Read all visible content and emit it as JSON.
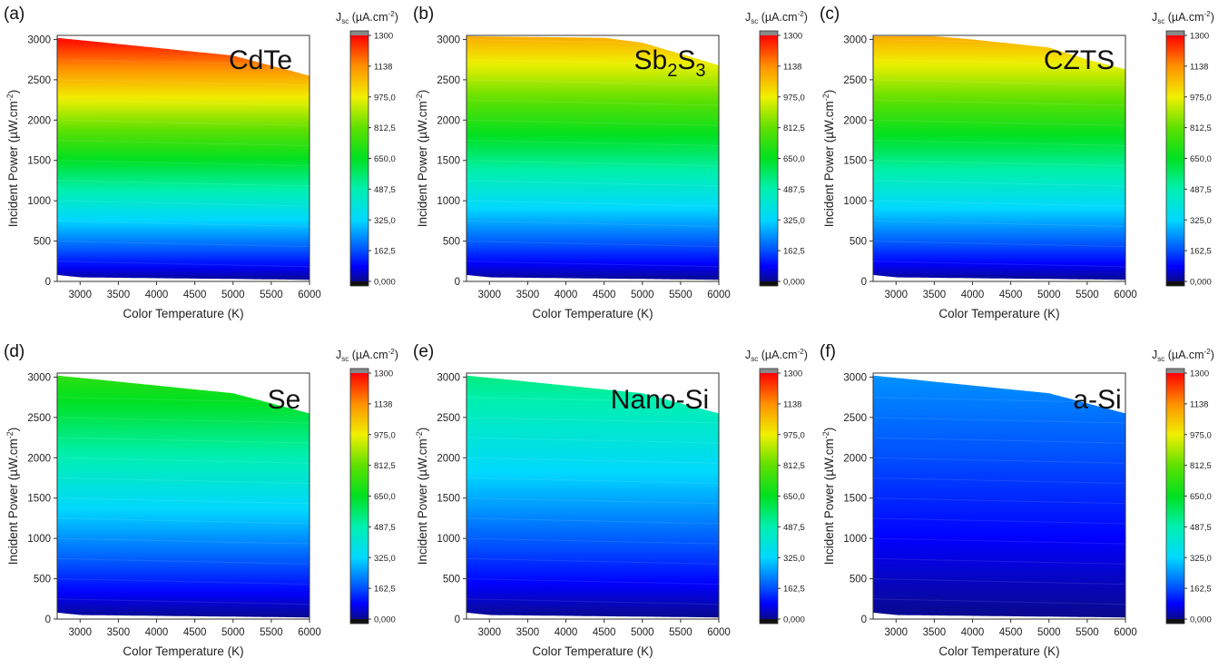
{
  "figure": {
    "colorbar": {
      "title_main": "J",
      "title_sub": "sc",
      "title_unit": " (µA.cm",
      "title_sup": "-2",
      "title_close": ")",
      "tick_labels": [
        "0,000",
        "162,5",
        "325,0",
        "487,5",
        "650,0",
        "812,5",
        "975,0",
        "1138",
        "1300"
      ],
      "range": [
        0,
        1300
      ],
      "stops": [
        {
          "value": 0,
          "color": "#0a0a8a"
        },
        {
          "value": 80,
          "color": "#0000ff"
        },
        {
          "value": 162.5,
          "color": "#0050ff"
        },
        {
          "value": 325,
          "color": "#00d8ff"
        },
        {
          "value": 487.5,
          "color": "#00f0b0"
        },
        {
          "value": 650,
          "color": "#00e020"
        },
        {
          "value": 812.5,
          "color": "#60e000"
        },
        {
          "value": 975,
          "color": "#f0f000"
        },
        {
          "value": 1138,
          "color": "#ff9000"
        },
        {
          "value": 1300,
          "color": "#ff0000"
        }
      ],
      "overflow_color": "#888888",
      "underflow_color": "#111111"
    }
  },
  "chart_data": [
    {
      "panel": "(a)",
      "material": "CdTe",
      "type": "heatmap",
      "xlabel": "Color Temperature (K)",
      "ylabel_main": "Incident Power (µW.cm",
      "ylabel_sup": "-2",
      "ylabel_close": ")",
      "xlim": [
        2700,
        6000
      ],
      "ylim": [
        0,
        3050
      ],
      "xticks": [
        3000,
        3500,
        4000,
        4500,
        5000,
        5500,
        6000
      ],
      "yticks": [
        0,
        500,
        1000,
        1500,
        2000,
        2500,
        3000
      ],
      "top_boundary": {
        "x": [
          2700,
          5000,
          6000
        ],
        "y": [
          3020,
          2800,
          2550
        ]
      },
      "bottom_boundary": {
        "x": [
          2700,
          3000,
          6000
        ],
        "y": [
          80,
          50,
          20
        ]
      },
      "jsc_per_power_uA_per_uW": 0.43,
      "jsc_max": 1300
    },
    {
      "panel": "(b)",
      "material_main": "Sb",
      "material_sub1": "2",
      "material_mid": "S",
      "material_sub2": "3",
      "type": "heatmap",
      "xlabel": "Color Temperature (K)",
      "ylabel_main": "Incident Power (µW.cm",
      "ylabel_sup": "-2",
      "ylabel_close": ")",
      "xlim": [
        2700,
        6000
      ],
      "ylim": [
        0,
        3050
      ],
      "xticks": [
        3000,
        3500,
        4000,
        4500,
        5000,
        5500,
        6000
      ],
      "yticks": [
        0,
        500,
        1000,
        1500,
        2000,
        2500,
        3000
      ],
      "top_boundary": {
        "x": [
          2700,
          4500,
          5000,
          5500,
          6000
        ],
        "y": [
          3040,
          3020,
          2960,
          2820,
          2680
        ]
      },
      "bottom_boundary": {
        "x": [
          2700,
          3000,
          6000
        ],
        "y": [
          80,
          50,
          20
        ]
      },
      "jsc_per_power_uA_per_uW": 0.36,
      "jsc_max": 1100
    },
    {
      "panel": "(c)",
      "material": "CZTS",
      "type": "heatmap",
      "xlabel": "Color Temperature (K)",
      "ylabel_main": "Incident Power (µW.cm",
      "ylabel_sup": "-2",
      "ylabel_close": ")",
      "xlim": [
        2700,
        6000
      ],
      "ylim": [
        0,
        3050
      ],
      "xticks": [
        3000,
        3500,
        4000,
        4500,
        5000,
        5500,
        6000
      ],
      "yticks": [
        0,
        500,
        1000,
        1500,
        2000,
        2500,
        3000
      ],
      "top_boundary": {
        "x": [
          2700,
          3500,
          4000,
          5000,
          5500,
          6000
        ],
        "y": [
          3040,
          3040,
          3000,
          2900,
          2750,
          2630
        ]
      },
      "bottom_boundary": {
        "x": [
          2700,
          3000,
          6000
        ],
        "y": [
          80,
          50,
          20
        ]
      },
      "jsc_per_power_uA_per_uW": 0.36,
      "jsc_max": 1100
    },
    {
      "panel": "(d)",
      "material": "Se",
      "type": "heatmap",
      "xlabel": "Color Temperature (K)",
      "ylabel_main": "Incident Power (µW.cm",
      "ylabel_sup": "-2",
      "ylabel_close": ")",
      "xlim": [
        2700,
        6000
      ],
      "ylim": [
        0,
        3050
      ],
      "xticks": [
        3000,
        3500,
        4000,
        4500,
        5000,
        5500,
        6000
      ],
      "yticks": [
        0,
        500,
        1000,
        1500,
        2000,
        2500,
        3000
      ],
      "top_boundary": {
        "x": [
          2700,
          5000,
          6000
        ],
        "y": [
          3020,
          2800,
          2550
        ]
      },
      "bottom_boundary": {
        "x": [
          2700,
          3000,
          6000
        ],
        "y": [
          80,
          50,
          20
        ]
      },
      "jsc_per_power_uA_per_uW": 0.24,
      "jsc_max": 730
    },
    {
      "panel": "(e)",
      "material": "Nano-Si",
      "type": "heatmap",
      "xlabel": "Color Temperature (K)",
      "ylabel_main": "Incident Power (µW.cm",
      "ylabel_sup": "-2",
      "ylabel_close": ")",
      "xlim": [
        2700,
        6000
      ],
      "ylim": [
        0,
        3050
      ],
      "xticks": [
        3000,
        3500,
        4000,
        4500,
        5000,
        5500,
        6000
      ],
      "yticks": [
        0,
        500,
        1000,
        1500,
        2000,
        2500,
        3000
      ],
      "top_boundary": {
        "x": [
          2700,
          5000,
          6000
        ],
        "y": [
          3020,
          2800,
          2550
        ]
      },
      "bottom_boundary": {
        "x": [
          2700,
          3000,
          6000
        ],
        "y": [
          80,
          50,
          20
        ]
      },
      "jsc_per_power_uA_per_uW": 0.18,
      "jsc_max": 540
    },
    {
      "panel": "(f)",
      "material": "a-Si",
      "type": "heatmap",
      "xlabel": "Color Temperature (K)",
      "ylabel_main": "Incident Power (µW.cm",
      "ylabel_sup": "-2",
      "ylabel_close": ")",
      "xlim": [
        2700,
        6000
      ],
      "ylim": [
        0,
        3050
      ],
      "xticks": [
        3000,
        3500,
        4000,
        4500,
        5000,
        5500,
        6000
      ],
      "yticks": [
        0,
        500,
        1000,
        1500,
        2000,
        2500,
        3000
      ],
      "top_boundary": {
        "x": [
          2700,
          5000,
          6000
        ],
        "y": [
          3020,
          2800,
          2550
        ]
      },
      "bottom_boundary": {
        "x": [
          2700,
          3000,
          6000
        ],
        "y": [
          80,
          50,
          20
        ]
      },
      "jsc_per_power_uA_per_uW": 0.08,
      "jsc_max": 250
    }
  ]
}
